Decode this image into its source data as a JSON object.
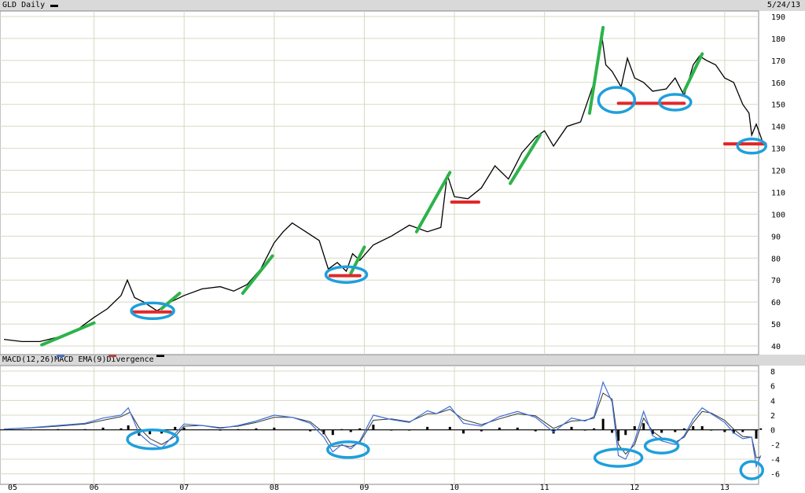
{
  "header": {
    "title": "GLD Daily",
    "date": "5/24/13"
  },
  "macd_header": {
    "macd_label": "MACD(12,26)",
    "ema_label": "MACD EMA(9)",
    "div_label": "Divergence"
  },
  "colors": {
    "price": "#000000",
    "macd": "#3c6fd8",
    "ema": "#333333",
    "divergence": "#000000",
    "grid": "#d8d8c4",
    "band": "#d9d9d9",
    "green_trend": "#2db34a",
    "red_support": "#e0282a",
    "blue_circle": "#1e9fdc"
  },
  "x_labels": [
    "05",
    "06",
    "07",
    "08",
    "09",
    "10",
    "11",
    "12",
    "13"
  ],
  "chart_data": [
    {
      "type": "line",
      "name": "GLD Daily",
      "x_range": [
        2005.0,
        2013.42
      ],
      "ylim": [
        40,
        190
      ],
      "y_ticks": [
        40,
        50,
        60,
        70,
        80,
        90,
        100,
        110,
        120,
        130,
        140,
        150,
        160,
        170,
        180,
        190
      ],
      "x": [
        2005.0,
        2005.2,
        2005.4,
        2005.6,
        2005.8,
        2006.0,
        2006.15,
        2006.3,
        2006.37,
        2006.45,
        2006.55,
        2006.7,
        2006.85,
        2007.0,
        2007.2,
        2007.4,
        2007.55,
        2007.7,
        2007.85,
        2008.0,
        2008.1,
        2008.2,
        2008.35,
        2008.5,
        2008.6,
        2008.7,
        2008.8,
        2008.87,
        2008.95,
        2009.1,
        2009.3,
        2009.5,
        2009.7,
        2009.85,
        2009.92,
        2010.0,
        2010.15,
        2010.3,
        2010.45,
        2010.6,
        2010.75,
        2010.9,
        2011.0,
        2011.1,
        2011.25,
        2011.4,
        2011.55,
        2011.63,
        2011.68,
        2011.75,
        2011.85,
        2011.92,
        2012.0,
        2012.1,
        2012.2,
        2012.35,
        2012.45,
        2012.55,
        2012.65,
        2012.72,
        2012.8,
        2012.9,
        2013.0,
        2013.1,
        2013.2,
        2013.27,
        2013.3,
        2013.35,
        2013.42
      ],
      "values": [
        43,
        42,
        42,
        44,
        47,
        53,
        57,
        63,
        70,
        62,
        60,
        56,
        60,
        63,
        66,
        67,
        65,
        68,
        75,
        87,
        92,
        96,
        92,
        88,
        75,
        78,
        74,
        82,
        79,
        86,
        90,
        95,
        92,
        94,
        118,
        108,
        107,
        112,
        122,
        116,
        128,
        135,
        138,
        131,
        140,
        142,
        160,
        183,
        168,
        165,
        158,
        171,
        162,
        160,
        156,
        157,
        162,
        154,
        168,
        172,
        170,
        168,
        162,
        160,
        150,
        146,
        136,
        141,
        133
      ]
    },
    {
      "type": "line",
      "name": "MACD(12,26)",
      "x_range": [
        2005.0,
        2013.42
      ],
      "ylim": [
        -7,
        8
      ],
      "y_ticks": [
        8,
        6,
        4,
        2,
        0,
        -2,
        -4,
        -6
      ],
      "series": [
        {
          "name": "MACD(12,26)",
          "x": [
            2005.0,
            2005.3,
            2005.6,
            2005.9,
            2006.1,
            2006.3,
            2006.38,
            2006.5,
            2006.62,
            2006.75,
            2006.9,
            2007.0,
            2007.2,
            2007.4,
            2007.6,
            2007.8,
            2008.0,
            2008.2,
            2008.4,
            2008.55,
            2008.65,
            2008.75,
            2008.85,
            2008.95,
            2009.1,
            2009.3,
            2009.5,
            2009.7,
            2009.8,
            2009.95,
            2010.1,
            2010.3,
            2010.5,
            2010.7,
            2010.9,
            2011.1,
            2011.3,
            2011.45,
            2011.55,
            2011.65,
            2011.75,
            2011.82,
            2011.9,
            2012.0,
            2012.1,
            2012.2,
            2012.3,
            2012.45,
            2012.55,
            2012.65,
            2012.75,
            2012.85,
            2013.0,
            2013.1,
            2013.2,
            2013.3,
            2013.35,
            2013.4
          ],
          "values": [
            0.1,
            0.3,
            0.6,
            0.9,
            1.6,
            2.0,
            3.0,
            -0.5,
            -1.8,
            -2.5,
            -0.5,
            0.8,
            0.6,
            0.2,
            0.6,
            1.2,
            2.0,
            1.7,
            0.9,
            -1.0,
            -3.0,
            -2.0,
            -2.6,
            -1.5,
            2.0,
            1.4,
            1.0,
            2.6,
            2.2,
            3.2,
            0.9,
            0.5,
            1.8,
            2.5,
            1.7,
            -0.3,
            1.6,
            1.2,
            1.8,
            6.5,
            3.8,
            -3.5,
            -4.0,
            -1.5,
            2.5,
            -0.8,
            -1.5,
            -2.0,
            -0.8,
            1.5,
            3.0,
            2.2,
            1.0,
            -0.4,
            -1.2,
            -1.0,
            -5.0,
            -3.5
          ]
        },
        {
          "name": "MACD EMA(9)",
          "x": [
            2005.0,
            2005.3,
            2005.6,
            2005.9,
            2006.1,
            2006.3,
            2006.4,
            2006.5,
            2006.62,
            2006.75,
            2006.9,
            2007.0,
            2007.2,
            2007.4,
            2007.6,
            2007.8,
            2008.0,
            2008.2,
            2008.4,
            2008.55,
            2008.65,
            2008.75,
            2008.85,
            2008.95,
            2009.1,
            2009.3,
            2009.5,
            2009.7,
            2009.8,
            2009.95,
            2010.1,
            2010.3,
            2010.5,
            2010.7,
            2010.9,
            2011.1,
            2011.3,
            2011.45,
            2011.55,
            2011.65,
            2011.75,
            2011.82,
            2011.9,
            2012.0,
            2012.1,
            2012.2,
            2012.3,
            2012.45,
            2012.55,
            2012.65,
            2012.75,
            2012.85,
            2013.0,
            2013.1,
            2013.2,
            2013.3,
            2013.35,
            2013.4
          ],
          "values": [
            0.1,
            0.25,
            0.5,
            0.8,
            1.3,
            1.8,
            2.4,
            0.3,
            -1.2,
            -2.0,
            -0.9,
            0.5,
            0.6,
            0.3,
            0.5,
            1.0,
            1.7,
            1.7,
            1.1,
            -0.4,
            -2.3,
            -2.1,
            -2.3,
            -1.7,
            1.3,
            1.5,
            1.1,
            2.2,
            2.2,
            2.8,
            1.4,
            0.7,
            1.5,
            2.2,
            1.9,
            0.2,
            1.2,
            1.3,
            1.6,
            5.0,
            4.2,
            -2.0,
            -3.3,
            -2.0,
            1.6,
            -0.2,
            -1.1,
            -1.7,
            -1.0,
            1.0,
            2.5,
            2.3,
            1.3,
            0.1,
            -0.9,
            -1.0,
            -3.8,
            -3.7
          ]
        }
      ]
    }
  ]
}
